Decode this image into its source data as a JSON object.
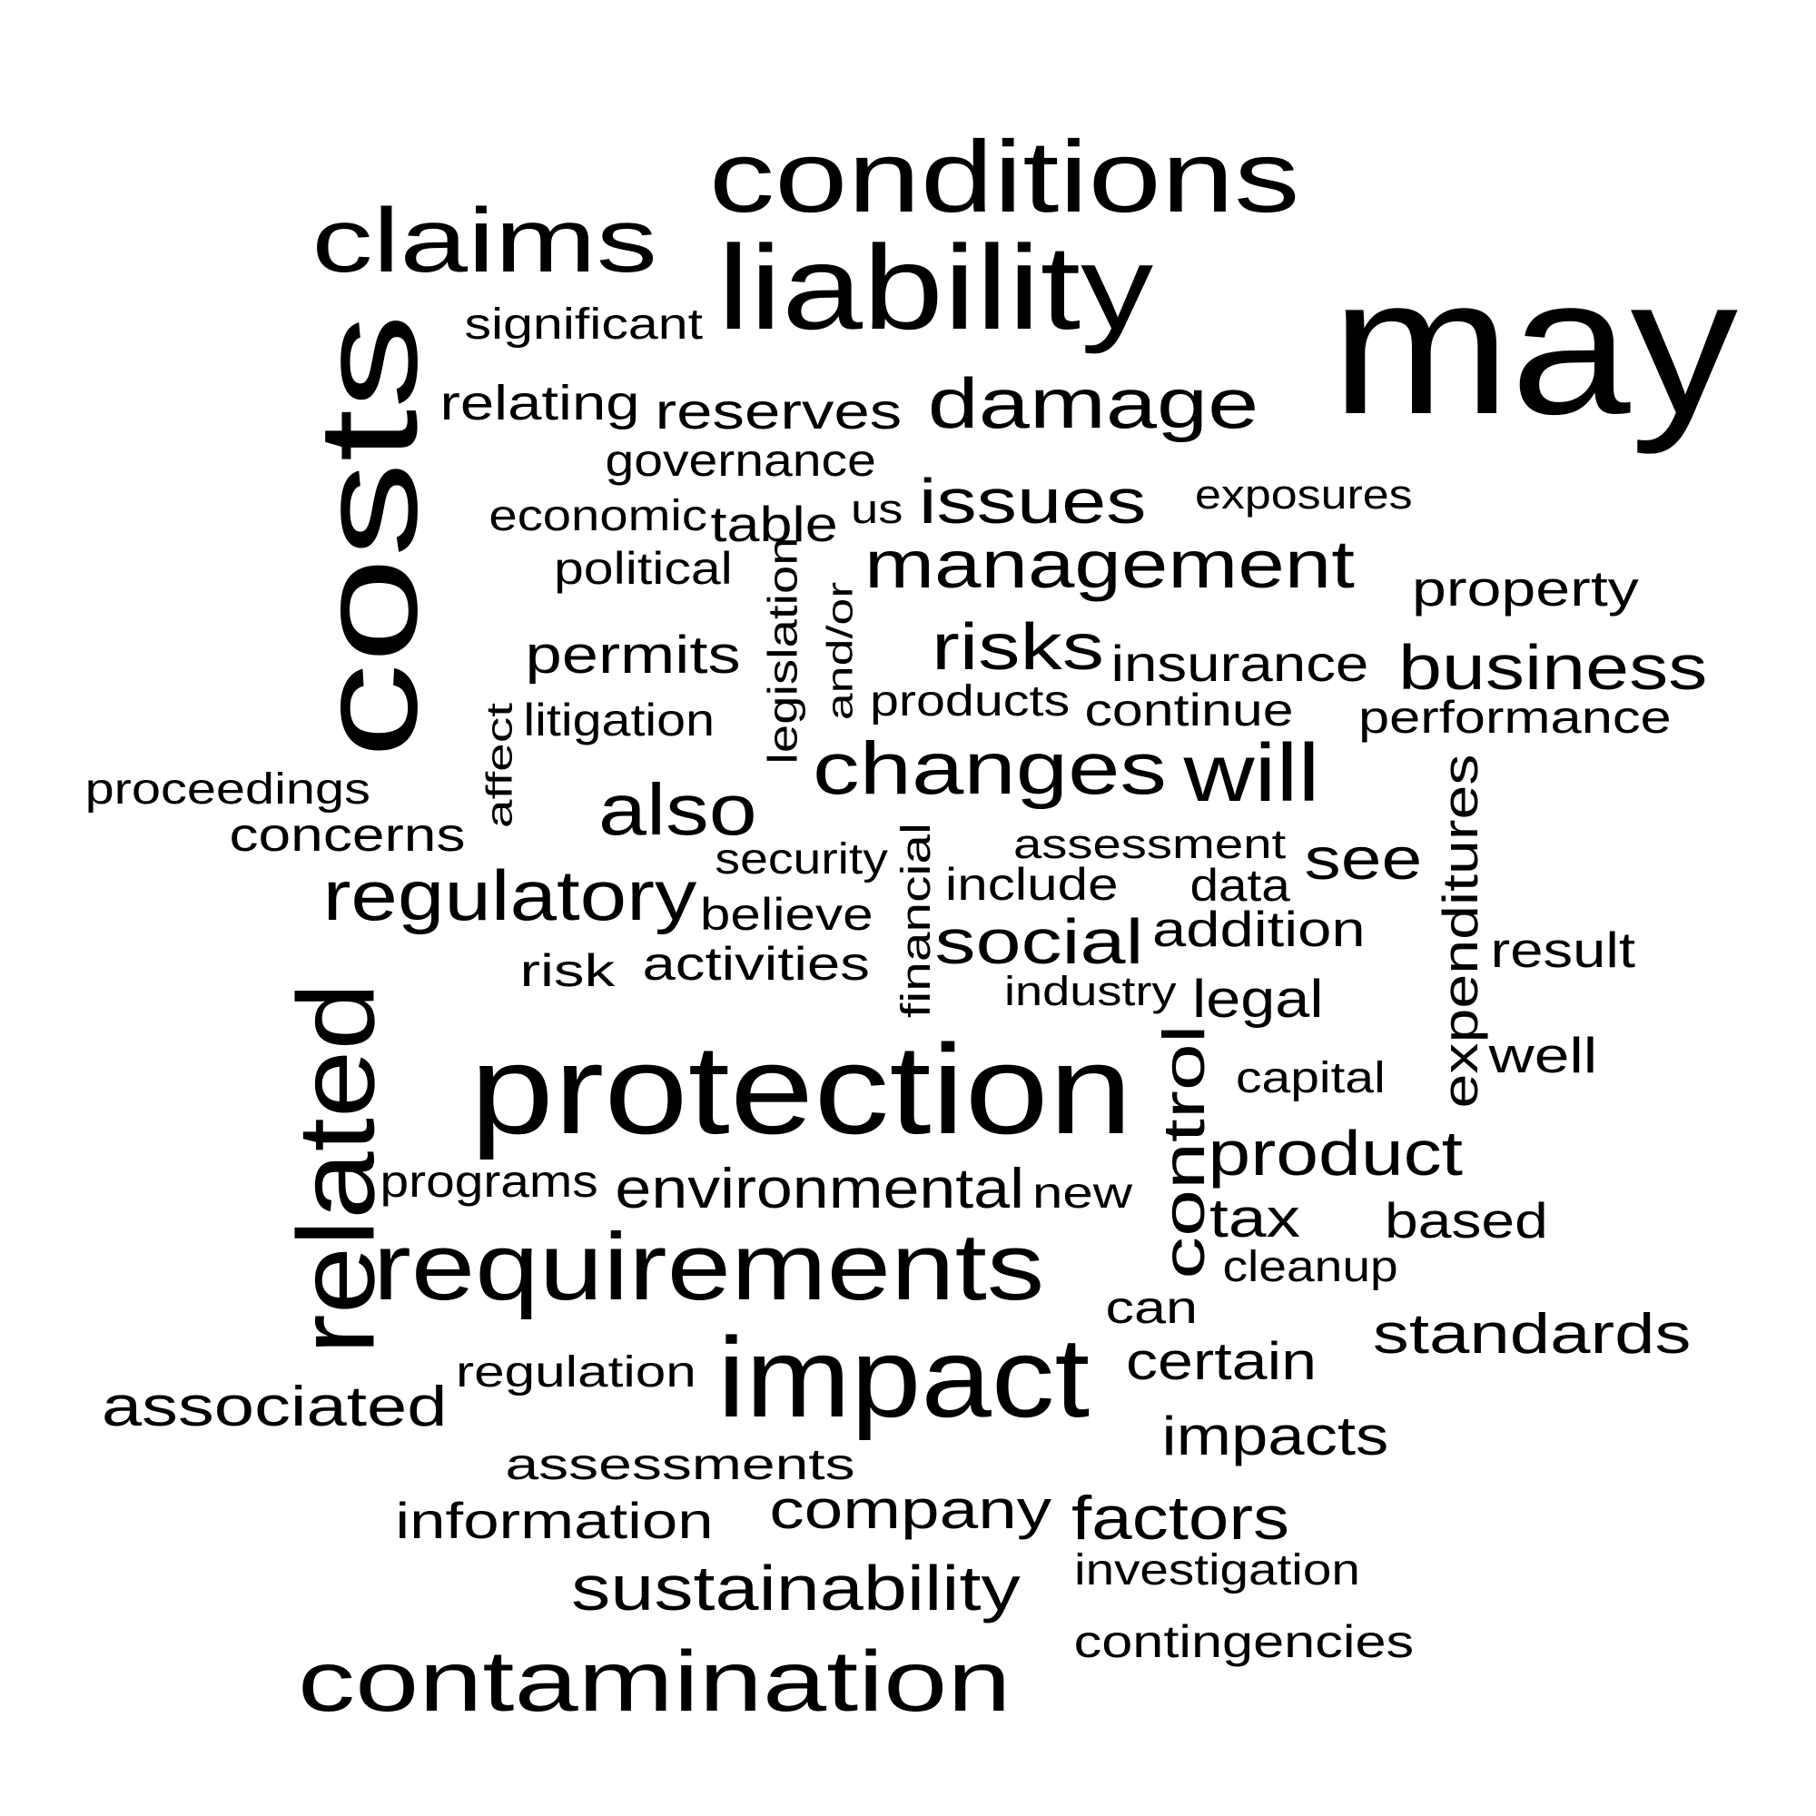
{
  "word_cloud": {
    "text_color": "#000000",
    "background_color": "#ffffff",
    "words": [
      {
        "text": "may",
        "orientation": "horizontal"
      },
      {
        "text": "costs",
        "orientation": "vertical"
      },
      {
        "text": "conditions",
        "orientation": "horizontal"
      },
      {
        "text": "liability",
        "orientation": "horizontal"
      },
      {
        "text": "claims",
        "orientation": "horizontal"
      },
      {
        "text": "protection",
        "orientation": "horizontal"
      },
      {
        "text": "impact",
        "orientation": "horizontal"
      },
      {
        "text": "related",
        "orientation": "vertical"
      },
      {
        "text": "requirements",
        "orientation": "horizontal"
      },
      {
        "text": "contamination",
        "orientation": "horizontal"
      },
      {
        "text": "damage",
        "orientation": "horizontal"
      },
      {
        "text": "changes",
        "orientation": "horizontal"
      },
      {
        "text": "will",
        "orientation": "horizontal"
      },
      {
        "text": "management",
        "orientation": "horizontal"
      },
      {
        "text": "regulatory",
        "orientation": "horizontal"
      },
      {
        "text": "also",
        "orientation": "horizontal"
      },
      {
        "text": "control",
        "orientation": "vertical"
      },
      {
        "text": "product",
        "orientation": "horizontal"
      },
      {
        "text": "social",
        "orientation": "horizontal"
      },
      {
        "text": "risks",
        "orientation": "horizontal"
      },
      {
        "text": "issues",
        "orientation": "horizontal"
      },
      {
        "text": "business",
        "orientation": "horizontal"
      },
      {
        "text": "sustainability",
        "orientation": "horizontal"
      },
      {
        "text": "factors",
        "orientation": "horizontal"
      },
      {
        "text": "environmental",
        "orientation": "horizontal"
      },
      {
        "text": "expenditures",
        "orientation": "vertical"
      },
      {
        "text": "see",
        "orientation": "horizontal"
      },
      {
        "text": "standards",
        "orientation": "horizontal"
      },
      {
        "text": "associated",
        "orientation": "horizontal"
      },
      {
        "text": "company",
        "orientation": "horizontal"
      },
      {
        "text": "reserves",
        "orientation": "horizontal"
      },
      {
        "text": "permits",
        "orientation": "horizontal"
      },
      {
        "text": "impacts",
        "orientation": "horizontal"
      },
      {
        "text": "certain",
        "orientation": "horizontal"
      },
      {
        "text": "tax",
        "orientation": "horizontal"
      },
      {
        "text": "insurance",
        "orientation": "horizontal"
      },
      {
        "text": "information",
        "orientation": "horizontal"
      },
      {
        "text": "relating",
        "orientation": "horizontal"
      },
      {
        "text": "property",
        "orientation": "horizontal"
      },
      {
        "text": "significant",
        "orientation": "horizontal"
      },
      {
        "text": "addition",
        "orientation": "horizontal"
      },
      {
        "text": "legal",
        "orientation": "horizontal"
      },
      {
        "text": "result",
        "orientation": "horizontal"
      },
      {
        "text": "well",
        "orientation": "horizontal"
      },
      {
        "text": "based",
        "orientation": "horizontal"
      },
      {
        "text": "concerns",
        "orientation": "horizontal"
      },
      {
        "text": "activities",
        "orientation": "horizontal"
      },
      {
        "text": "table",
        "orientation": "horizontal"
      },
      {
        "text": "governance",
        "orientation": "horizontal"
      },
      {
        "text": "economic",
        "orientation": "horizontal"
      },
      {
        "text": "political",
        "orientation": "horizontal"
      },
      {
        "text": "litigation",
        "orientation": "horizontal"
      },
      {
        "text": "legislation",
        "orientation": "vertical"
      },
      {
        "text": "and/or",
        "orientation": "vertical"
      },
      {
        "text": "products",
        "orientation": "horizontal"
      },
      {
        "text": "continue",
        "orientation": "horizontal"
      },
      {
        "text": "performance",
        "orientation": "horizontal"
      },
      {
        "text": "proceedings",
        "orientation": "horizontal"
      },
      {
        "text": "affect",
        "orientation": "vertical"
      },
      {
        "text": "security",
        "orientation": "horizontal"
      },
      {
        "text": "financial",
        "orientation": "vertical"
      },
      {
        "text": "assessment",
        "orientation": "horizontal"
      },
      {
        "text": "include",
        "orientation": "horizontal"
      },
      {
        "text": "data",
        "orientation": "horizontal"
      },
      {
        "text": "believe",
        "orientation": "horizontal"
      },
      {
        "text": "risk",
        "orientation": "horizontal"
      },
      {
        "text": "industry",
        "orientation": "horizontal"
      },
      {
        "text": "capital",
        "orientation": "horizontal"
      },
      {
        "text": "programs",
        "orientation": "horizontal"
      },
      {
        "text": "new",
        "orientation": "horizontal"
      },
      {
        "text": "cleanup",
        "orientation": "horizontal"
      },
      {
        "text": "can",
        "orientation": "horizontal"
      },
      {
        "text": "regulation",
        "orientation": "horizontal"
      },
      {
        "text": "assessments",
        "orientation": "horizontal"
      },
      {
        "text": "investigation",
        "orientation": "horizontal"
      },
      {
        "text": "contingencies",
        "orientation": "horizontal"
      },
      {
        "text": "exposures",
        "orientation": "horizontal"
      },
      {
        "text": "us",
        "orientation": "horizontal"
      }
    ]
  }
}
